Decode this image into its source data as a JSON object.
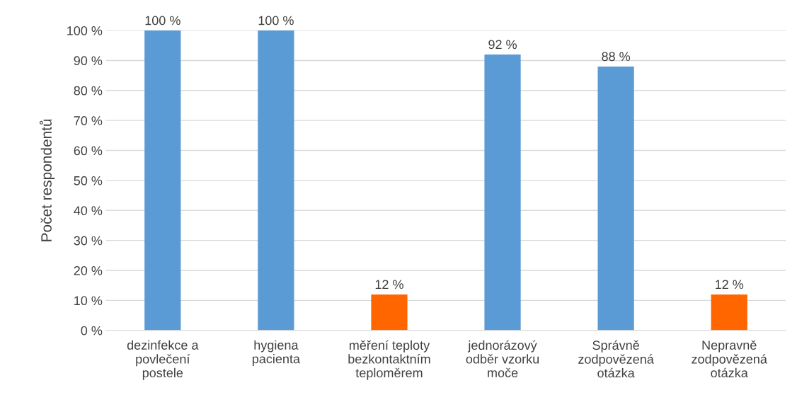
{
  "chart_data": {
    "type": "bar",
    "ylabel": "Počet respondentů",
    "categories": [
      "dezinfekce a\npovlečení\npostele",
      "hygiena\npacienta",
      "měření teploty\nbezkontaktním\nteploměrem",
      "jednorázový\nodběr vzorku\nmoče",
      "Správně\nzodpovězená\notázka",
      "Nepravně\nzodpovězená\notázka"
    ],
    "values": [
      100,
      100,
      12,
      92,
      88,
      12
    ],
    "colors": [
      "#5b9bd5",
      "#5b9bd5",
      "#ff6600",
      "#5b9bd5",
      "#5b9bd5",
      "#ff6600"
    ],
    "value_labels": [
      "100 %",
      "100 %",
      "12 %",
      "92 %",
      "88 %",
      "12 %"
    ],
    "ylim": [
      0,
      100
    ],
    "yticks": [
      {
        "value": 0,
        "label": "0 %"
      },
      {
        "value": 10,
        "label": "10 %"
      },
      {
        "value": 20,
        "label": "20 %"
      },
      {
        "value": 30,
        "label": "30 %"
      },
      {
        "value": 40,
        "label": "40 %"
      },
      {
        "value": 50,
        "label": "50 %"
      },
      {
        "value": 60,
        "label": "60 %"
      },
      {
        "value": 70,
        "label": "70 %"
      },
      {
        "value": 80,
        "label": "80 %"
      },
      {
        "value": 90,
        "label": "90 %"
      },
      {
        "value": 100,
        "label": "100 %"
      }
    ],
    "grid": "y"
  }
}
